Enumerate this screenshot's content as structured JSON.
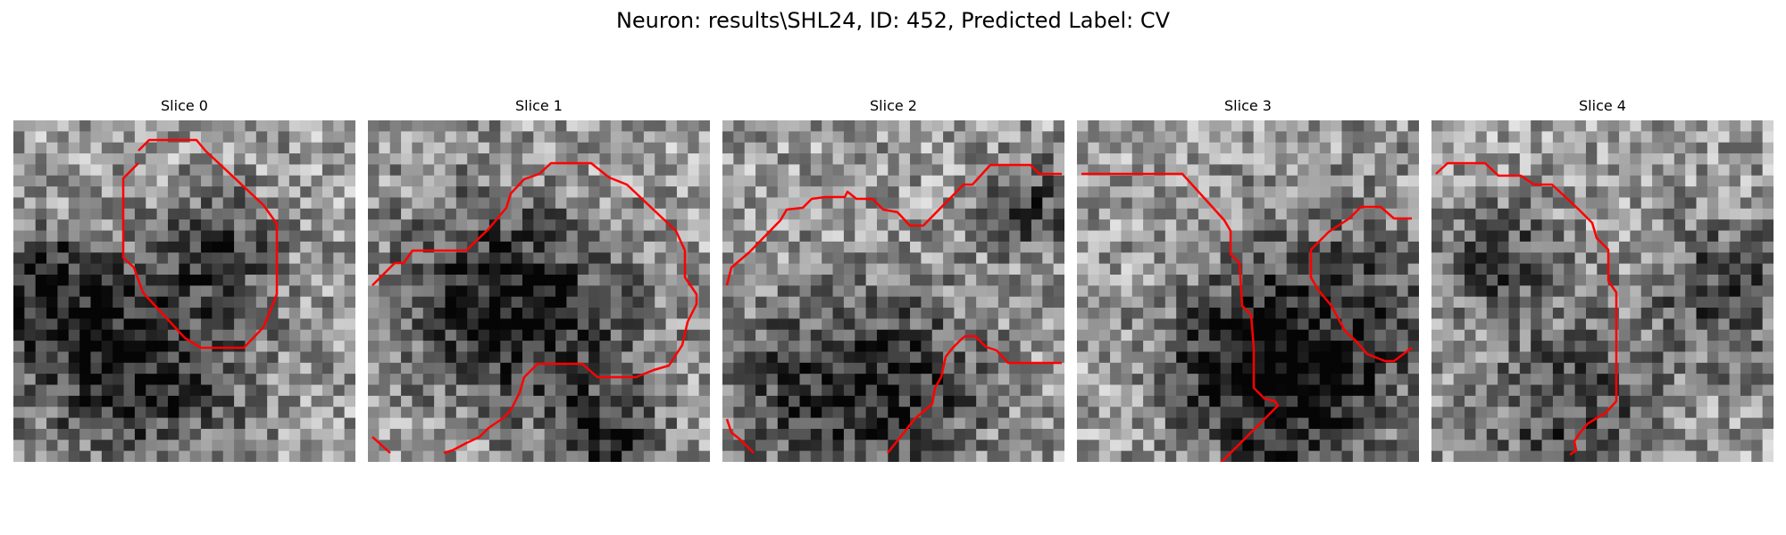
{
  "figure": {
    "title": "Neuron: results\\SHL24, ID: 452, Predicted Label: CV"
  },
  "contour_color": "#ff0000",
  "slices": [
    {
      "title": "Slice 0",
      "seed": 11,
      "dark_spots": [
        [
          0.2,
          0.65,
          0.18
        ],
        [
          0.45,
          0.75,
          0.2
        ],
        [
          0.6,
          0.38,
          0.12
        ],
        [
          0.08,
          0.45,
          0.1
        ]
      ]
    },
    {
      "title": "Slice 1",
      "seed": 29,
      "dark_spots": [
        [
          0.3,
          0.5,
          0.2
        ],
        [
          0.55,
          0.6,
          0.2
        ],
        [
          0.7,
          0.95,
          0.12
        ]
      ]
    },
    {
      "title": "Slice 2",
      "seed": 47,
      "dark_spots": [
        [
          0.25,
          0.8,
          0.2
        ],
        [
          0.55,
          0.78,
          0.18
        ],
        [
          0.9,
          0.25,
          0.1
        ]
      ]
    },
    {
      "title": "Slice 3",
      "seed": 71,
      "dark_spots": [
        [
          0.75,
          0.55,
          0.22
        ],
        [
          0.65,
          0.85,
          0.18
        ],
        [
          0.45,
          0.7,
          0.15
        ]
      ]
    },
    {
      "title": "Slice 4",
      "seed": 93,
      "dark_spots": [
        [
          0.4,
          0.85,
          0.18
        ],
        [
          0.85,
          0.5,
          0.15
        ],
        [
          0.2,
          0.4,
          0.12
        ]
      ]
    }
  ]
}
